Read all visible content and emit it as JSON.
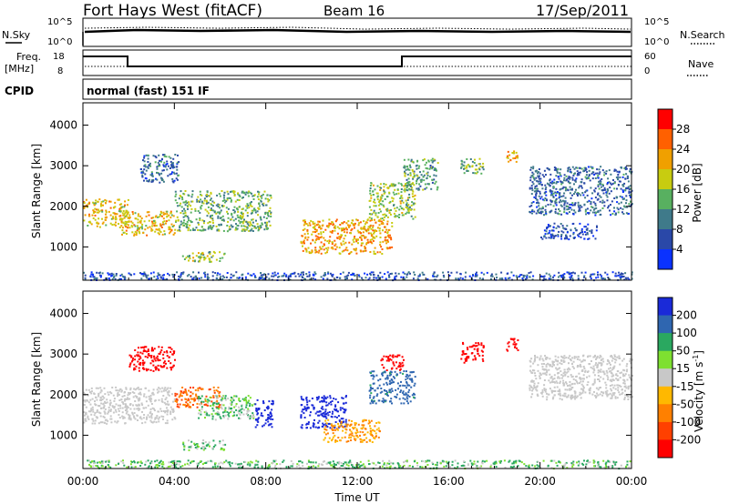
{
  "header": {
    "station": "Fort Hays West (fitACF)",
    "beam": "Beam 16",
    "date": "17/Sep/2011"
  },
  "status_panels": {
    "nsky_label": "N.Sky",
    "nsky_ticks": [
      "10^5",
      "10^0"
    ],
    "nsearch_label": "N.Search",
    "nsearch_ticks": [
      "10^5",
      "10^0"
    ],
    "freq_label_1": "Freq.",
    "freq_label_2": "[MHz]",
    "freq_ticks": [
      "18",
      "8"
    ],
    "nave_label": "Nave",
    "nave_ticks": [
      "60",
      "0"
    ],
    "cpid_label": "CPID",
    "cpid_value": "normal (fast) 151 IF"
  },
  "chart_data": [
    {
      "type": "heatmap",
      "panel": "power",
      "ylabel": "Slant Range [km]",
      "yticks": [
        1000,
        2000,
        3000,
        4000
      ],
      "ylim": [
        180,
        4550
      ],
      "xlim": [
        0,
        24
      ],
      "colorbar_label": "Power [dB]",
      "colorbar_ticks": [
        4,
        8,
        12,
        16,
        20,
        24,
        28
      ],
      "colorbar_colors": [
        "#0a32ff",
        "#2a48a8",
        "#3f7a8a",
        "#58b060",
        "#c8cc10",
        "#f0a000",
        "#ff6000",
        "#ff0000"
      ],
      "echo_regions": [
        {
          "t0": 0.0,
          "t1": 2.0,
          "r0": 1500,
          "r1": 2200,
          "level": 20
        },
        {
          "t0": 1.6,
          "t1": 4.0,
          "r0": 1300,
          "r1": 1900,
          "level": 20
        },
        {
          "t0": 2.5,
          "t1": 4.2,
          "r0": 2600,
          "r1": 3300,
          "level": 8
        },
        {
          "t0": 4.0,
          "t1": 8.2,
          "r0": 1400,
          "r1": 2400,
          "level": 14
        },
        {
          "t0": 4.3,
          "t1": 6.2,
          "r0": 650,
          "r1": 900,
          "level": 16
        },
        {
          "t0": 9.5,
          "t1": 13.5,
          "r0": 850,
          "r1": 1700,
          "level": 22
        },
        {
          "t0": 12.5,
          "t1": 14.5,
          "r0": 1700,
          "r1": 2600,
          "level": 16
        },
        {
          "t0": 14.0,
          "t1": 15.5,
          "r0": 2400,
          "r1": 3200,
          "level": 12
        },
        {
          "t0": 16.5,
          "t1": 17.5,
          "r0": 2800,
          "r1": 3200,
          "level": 14
        },
        {
          "t0": 18.5,
          "t1": 19.0,
          "r0": 3100,
          "r1": 3400,
          "level": 22
        },
        {
          "t0": 19.5,
          "t1": 24.0,
          "r0": 1800,
          "r1": 3000,
          "level": 8
        },
        {
          "t0": 20.0,
          "t1": 22.5,
          "r0": 1200,
          "r1": 1600,
          "level": 6
        },
        {
          "t0": 0.0,
          "t1": 24.0,
          "r0": 200,
          "r1": 400,
          "level": 6
        }
      ]
    },
    {
      "type": "heatmap",
      "panel": "velocity",
      "ylabel": "Slant Range [km]",
      "yticks": [
        1000,
        2000,
        3000,
        4000
      ],
      "ylim": [
        180,
        4550
      ],
      "xlim": [
        0,
        24
      ],
      "xticks": [
        "00:00",
        "04:00",
        "08:00",
        "12:00",
        "16:00",
        "20:00",
        "00:00"
      ],
      "xlabel": "Time UT",
      "colorbar_label": "Velocity [m s",
      "colorbar_label_sup": "-1",
      "colorbar_ticks": [
        200,
        100,
        50,
        15,
        -15,
        -50,
        -100,
        -200
      ],
      "colorbar_colors": [
        "#1a2ad8",
        "#2f66b0",
        "#2aa860",
        "#7ee030",
        "#c8c8c8",
        "#ffb800",
        "#ff8000",
        "#ff4000",
        "#ff0000"
      ],
      "echo_regions": [
        {
          "t0": 0.0,
          "t1": 4.0,
          "r0": 1300,
          "r1": 2200,
          "level": 0
        },
        {
          "t0": 2.0,
          "t1": 4.0,
          "r0": 2600,
          "r1": 3200,
          "level": -200
        },
        {
          "t0": 4.0,
          "t1": 6.0,
          "r0": 1700,
          "r1": 2200,
          "level": -100
        },
        {
          "t0": 5.0,
          "t1": 7.5,
          "r0": 1400,
          "r1": 2000,
          "level": 30
        },
        {
          "t0": 7.5,
          "t1": 8.3,
          "r0": 1200,
          "r1": 1900,
          "level": 200
        },
        {
          "t0": 4.3,
          "t1": 6.2,
          "r0": 650,
          "r1": 900,
          "level": 30
        },
        {
          "t0": 9.5,
          "t1": 11.5,
          "r0": 1200,
          "r1": 2000,
          "level": 200
        },
        {
          "t0": 10.5,
          "t1": 13.0,
          "r0": 850,
          "r1": 1400,
          "level": -50
        },
        {
          "t0": 12.5,
          "t1": 14.5,
          "r0": 1800,
          "r1": 2600,
          "level": 100
        },
        {
          "t0": 13.0,
          "t1": 14.0,
          "r0": 2600,
          "r1": 3000,
          "level": -200
        },
        {
          "t0": 16.5,
          "t1": 17.5,
          "r0": 2800,
          "r1": 3300,
          "level": -200
        },
        {
          "t0": 18.5,
          "t1": 19.0,
          "r0": 3100,
          "r1": 3400,
          "level": -200
        },
        {
          "t0": 19.5,
          "t1": 24.0,
          "r0": 1900,
          "r1": 3000,
          "level": 0
        },
        {
          "t0": 0.0,
          "t1": 24.0,
          "r0": 200,
          "r1": 400,
          "level": 30
        }
      ]
    }
  ]
}
